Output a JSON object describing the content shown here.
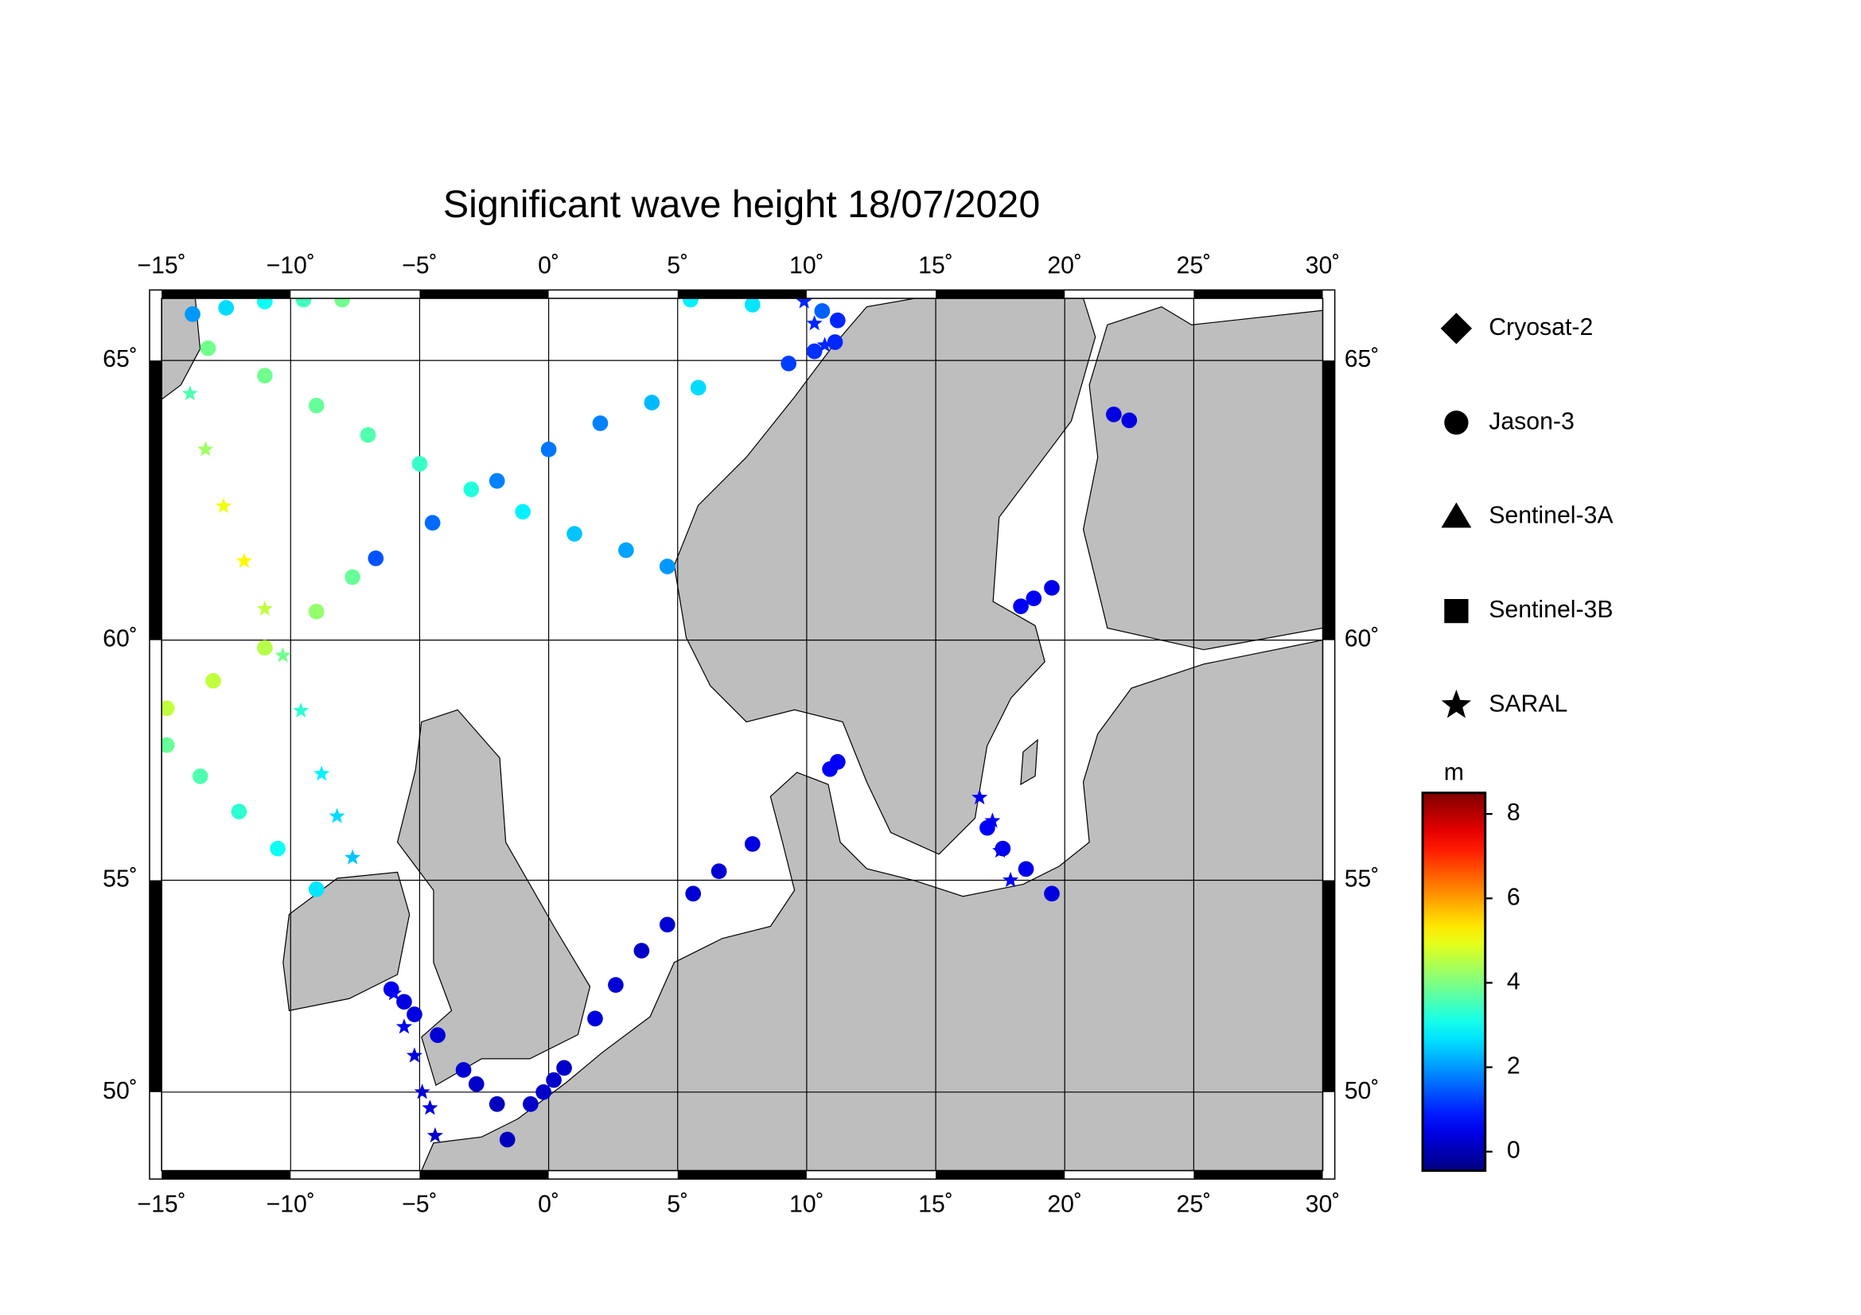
{
  "chart_data": {
    "type": "scatter",
    "title": "Significant wave height 18/07/2020",
    "xlim": [
      -15,
      30
    ],
    "ylim": [
      48,
      66
    ],
    "projection": "mercator",
    "grid": true,
    "xticks": [
      {
        "value": -15,
        "label": "−15˚"
      },
      {
        "value": -10,
        "label": "−10˚"
      },
      {
        "value": -5,
        "label": "−5˚"
      },
      {
        "value": 0,
        "label": "0˚"
      },
      {
        "value": 5,
        "label": "5˚"
      },
      {
        "value": 10,
        "label": "10˚"
      },
      {
        "value": 15,
        "label": "15˚"
      },
      {
        "value": 20,
        "label": "20˚"
      },
      {
        "value": 25,
        "label": "25˚"
      },
      {
        "value": 30,
        "label": "30˚"
      }
    ],
    "yticks": [
      {
        "value": 50,
        "label": "50˚"
      },
      {
        "value": 55,
        "label": "55˚"
      },
      {
        "value": 60,
        "label": "60˚"
      },
      {
        "value": 65,
        "label": "65˚"
      }
    ],
    "colorbar": {
      "label": "m",
      "colormap": "jet",
      "lim": [
        -0.45,
        8.5
      ],
      "ticks": [
        0,
        2,
        4,
        6,
        8
      ]
    },
    "series": [
      {
        "name": "Cryosat-2",
        "marker": "diamond",
        "x": [],
        "y": [],
        "values": []
      },
      {
        "name": "Jason-3",
        "marker": "circle",
        "x": [
          -13.8,
          -12.5,
          -11.0,
          -9.5,
          -8.0,
          -13.2,
          -11,
          -9,
          -7,
          -5,
          -3,
          -1,
          1,
          3,
          4.6,
          -14.8,
          -13,
          -11,
          -9,
          -7.6,
          -6.7,
          -4.5,
          -2,
          0,
          2,
          4,
          5.8,
          -14.8,
          -13.5,
          -12,
          -10.5,
          -9.0,
          5.5,
          7.9,
          9.3,
          10.3,
          11.1,
          11.2,
          10.6,
          21.9,
          22.5,
          18.3,
          18.8,
          19.5,
          10.9,
          11.2,
          1.8,
          2.6,
          3.6,
          4.6,
          5.6,
          6.6,
          7.9,
          17.0,
          17.6,
          18.5,
          19.5,
          -0.7,
          -0.2,
          0.2,
          0.6,
          -3.3,
          -2.8,
          -2.0,
          -1.6,
          -6.1,
          -5.6,
          -5.2,
          -4.3
        ],
        "y": [
          65.75,
          65.85,
          65.95,
          65.98,
          65.98,
          65.2,
          64.75,
          64.25,
          63.75,
          63.25,
          62.8,
          62.4,
          62.0,
          61.7,
          61.4,
          58.65,
          59.2,
          59.85,
          60.55,
          61.2,
          61.55,
          62.2,
          62.95,
          63.5,
          63.95,
          64.3,
          64.55,
          57.9,
          57.25,
          56.5,
          55.7,
          54.8,
          65.98,
          65.9,
          64.95,
          65.15,
          65.3,
          65.65,
          65.8,
          64.1,
          64.0,
          60.65,
          60.8,
          61.0,
          57.4,
          57.55,
          51.8,
          52.6,
          53.4,
          54.0,
          54.7,
          55.2,
          55.8,
          56.15,
          55.7,
          55.25,
          54.7,
          49.7,
          50.0,
          50.3,
          50.6,
          50.55,
          50.2,
          49.7,
          48.8,
          52.5,
          52.2,
          51.9,
          51.4
        ],
        "values": [
          2.0,
          2.6,
          3.0,
          3.5,
          3.9,
          3.9,
          3.9,
          3.8,
          3.6,
          3.4,
          3.2,
          2.8,
          2.4,
          2.1,
          2.0,
          4.6,
          4.6,
          4.5,
          4.2,
          3.8,
          1.4,
          1.6,
          1.8,
          1.7,
          1.8,
          2.3,
          2.6,
          3.8,
          3.6,
          3.3,
          3.0,
          2.7,
          2.8,
          2.7,
          1.2,
          1.1,
          1.0,
          1.0,
          1.5,
          0.4,
          0.4,
          0.6,
          0.6,
          0.5,
          0.6,
          0.6,
          0.4,
          0.3,
          0.2,
          0.3,
          0.3,
          0.3,
          0.4,
          0.6,
          0.5,
          0.5,
          0.4,
          0.2,
          0.2,
          0.2,
          0.2,
          0.3,
          0.2,
          0.1,
          0.1,
          0.5,
          0.4,
          0.4,
          0.3
        ]
      },
      {
        "name": "Sentinel-3A",
        "marker": "triangle",
        "x": [],
        "y": [],
        "values": []
      },
      {
        "name": "Sentinel-3B",
        "marker": "square",
        "x": [],
        "y": [],
        "values": []
      },
      {
        "name": "SARAL",
        "marker": "star",
        "x": [
          -13.9,
          -13.3,
          -12.6,
          -11.8,
          -11.0,
          -10.3,
          -9.6,
          -8.8,
          -8.2,
          -7.6,
          -6.0,
          -5.6,
          -5.2,
          -4.9,
          -4.6,
          -4.4,
          9.9,
          10.3,
          10.7,
          16.7,
          17.2,
          17.5,
          17.9
        ],
        "y": [
          64.45,
          63.5,
          62.5,
          61.5,
          60.6,
          59.7,
          58.6,
          57.3,
          56.4,
          55.5,
          52.4,
          51.6,
          50.9,
          50.0,
          49.6,
          48.9,
          65.95,
          65.6,
          65.25,
          56.8,
          56.3,
          55.65,
          55.0
        ],
        "values": [
          3.6,
          4.3,
          5.0,
          5.2,
          4.6,
          3.9,
          3.3,
          2.8,
          2.6,
          2.4,
          0.6,
          0.5,
          0.4,
          0.3,
          0.3,
          0.2,
          1.0,
          1.0,
          1.0,
          0.6,
          0.6,
          0.6,
          0.6
        ]
      }
    ]
  }
}
